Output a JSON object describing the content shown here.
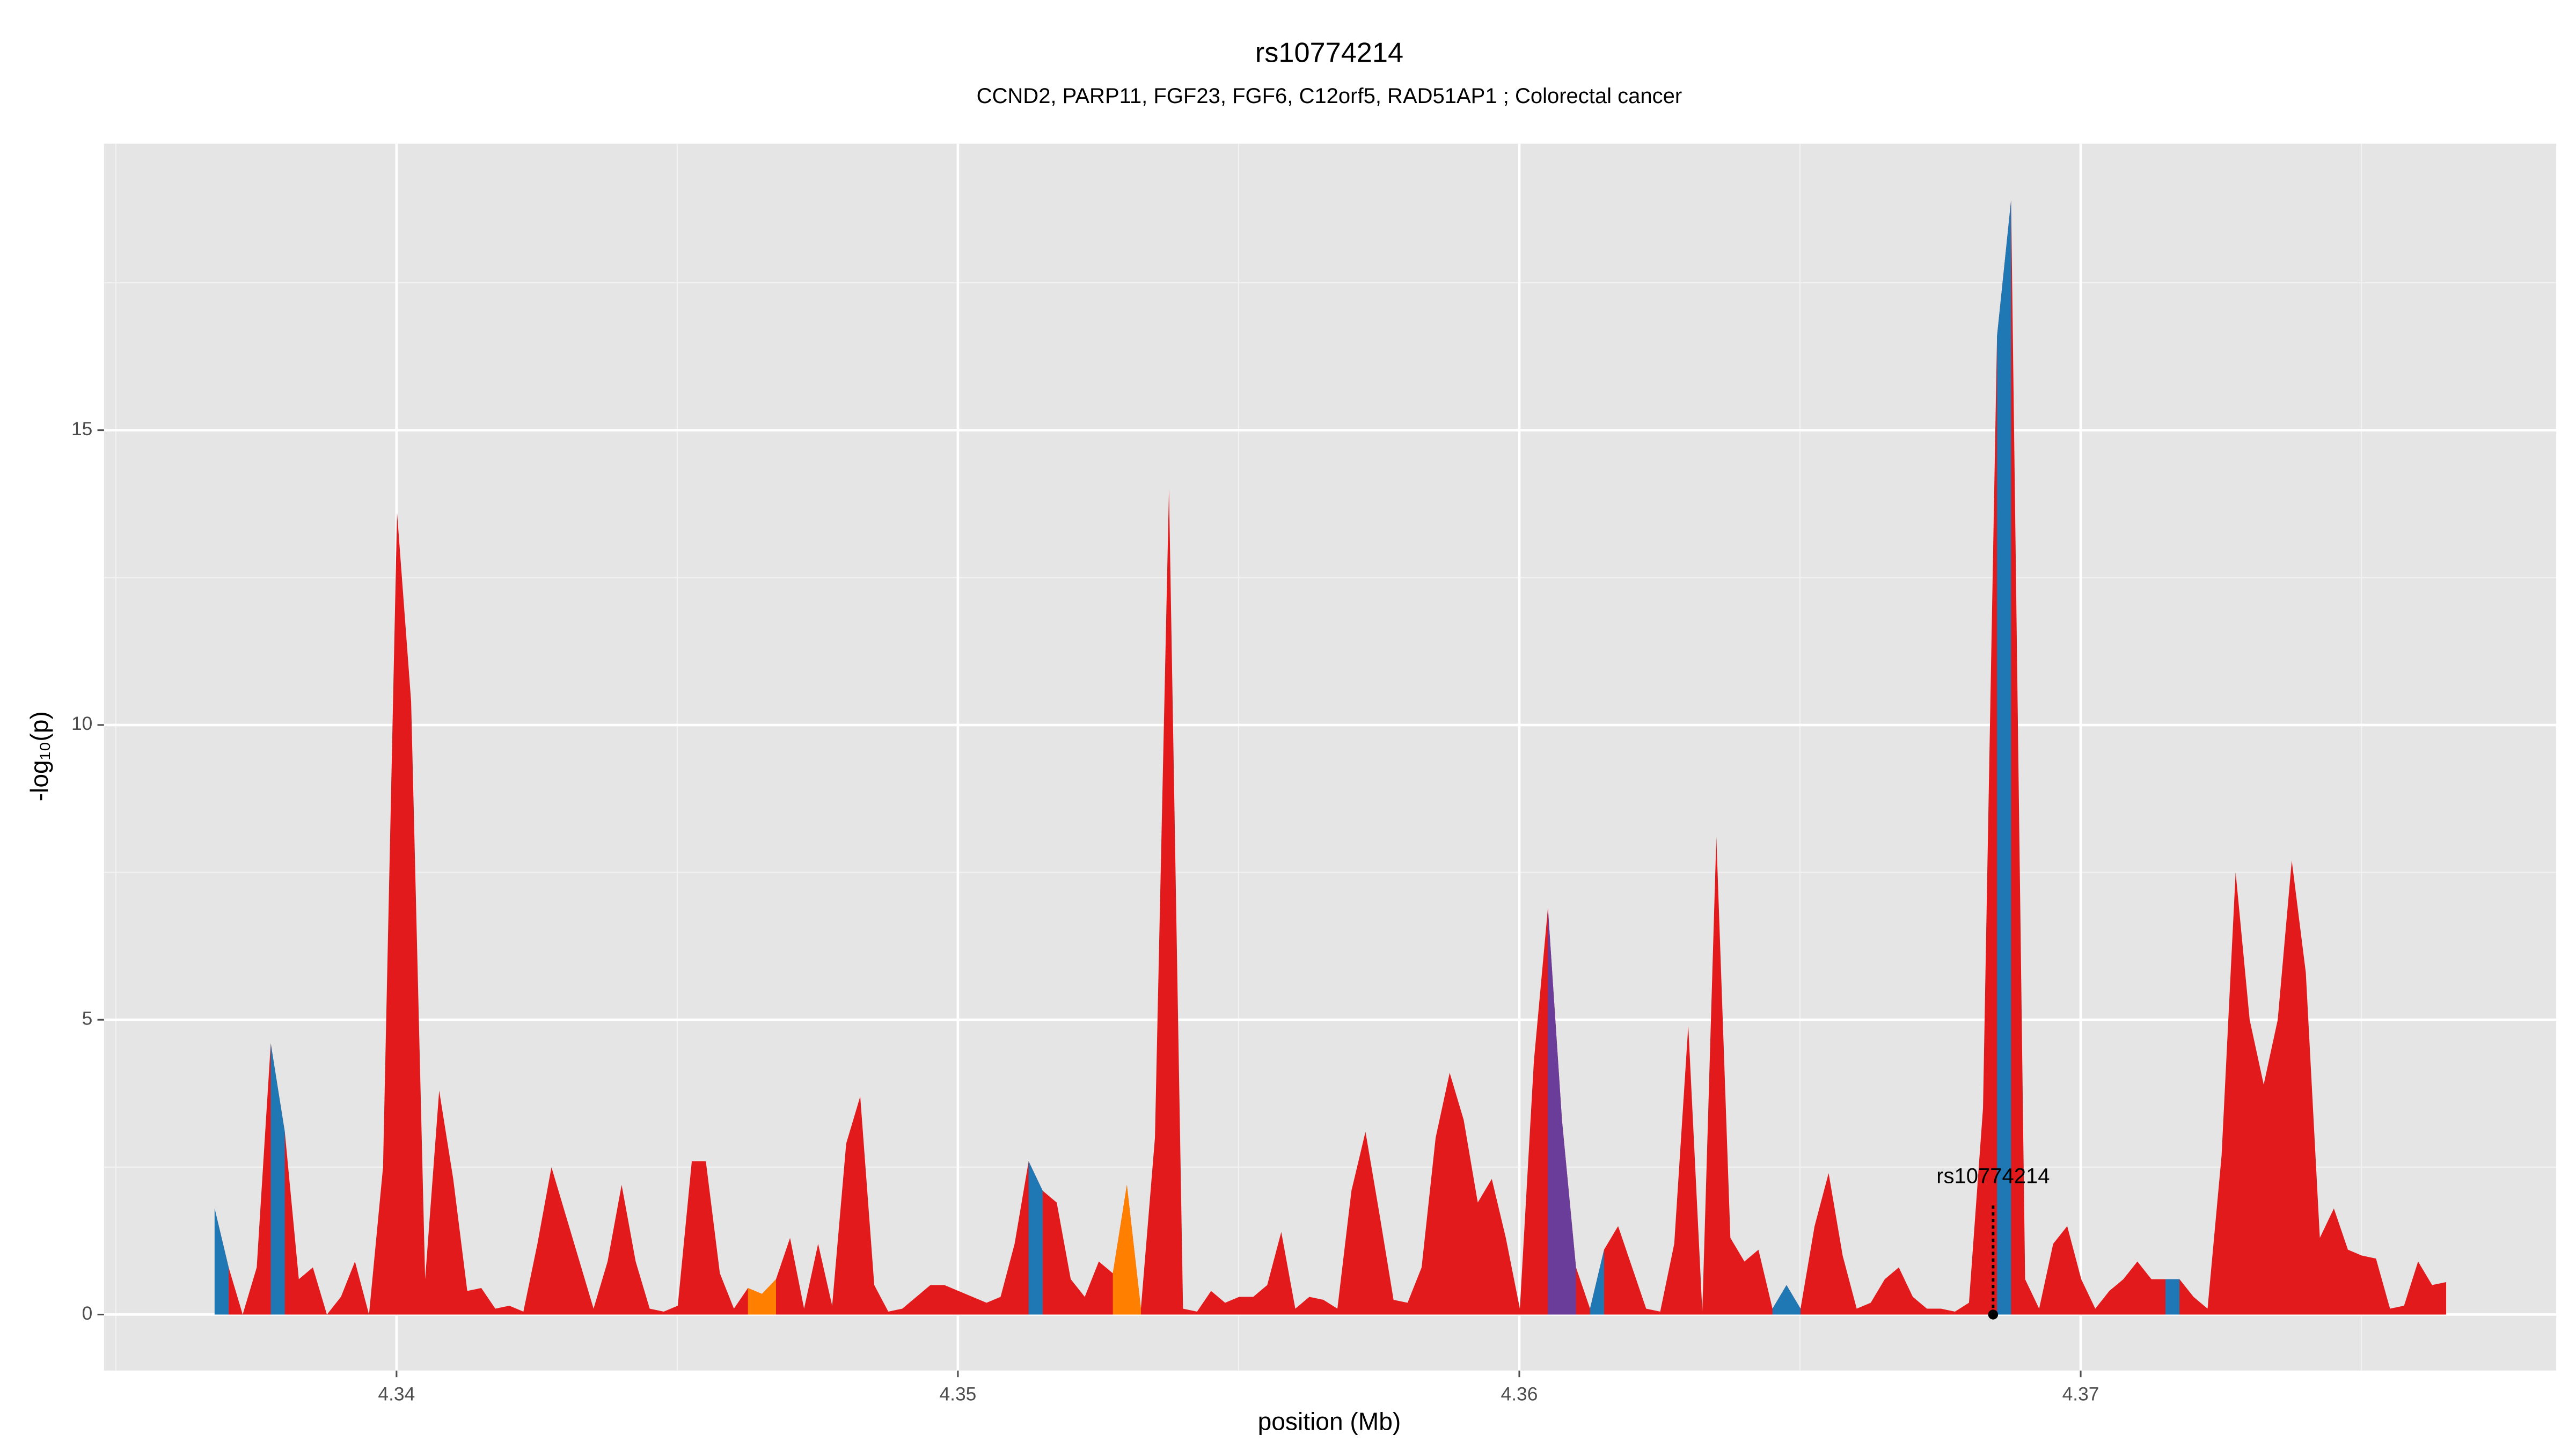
{
  "chart_data": {
    "type": "area",
    "title": "rs10774214",
    "subtitle": "CCND2, PARP11, FGF23, FGF6, C12orf5, RAD51AP1 ; Colorectal cancer",
    "x_label": "position (Mb)",
    "y_label": "-log₁₀(p)",
    "xlim": [
      4.33479,
      4.37847
    ],
    "ylim": [
      -0.95,
      19.86
    ],
    "xticks": [
      4.34,
      4.35,
      4.36,
      4.37
    ],
    "yticks": [
      0,
      5,
      10,
      15
    ],
    "x_minor_ticks": [
      4.335,
      4.345,
      4.355,
      4.365,
      4.375
    ],
    "y_minor_ticks": [
      2.5,
      7.5,
      12.5,
      17.5
    ],
    "grid": true,
    "series": [
      {
        "color": "#e31a1c",
        "x": [
          4.33676,
          4.33701,
          4.33726,
          4.33751,
          4.33776,
          4.33801,
          4.33826,
          4.33851,
          4.33876,
          4.33901,
          4.33926,
          4.33951,
          4.33976,
          4.34001,
          4.34026,
          4.34051,
          4.34076,
          4.34101,
          4.34126,
          4.34151,
          4.34176,
          4.34201,
          4.34226,
          4.34251,
          4.34276,
          4.34301,
          4.34326,
          4.34351,
          4.34376,
          4.34401,
          4.34426,
          4.34451,
          4.34476,
          4.34501,
          4.34526,
          4.34551,
          4.34576,
          4.34601,
          4.34626,
          4.34651,
          4.34676,
          4.34701,
          4.34726,
          4.34751,
          4.34776,
          4.34801,
          4.34826,
          4.34851,
          4.34876,
          4.34901,
          4.34926,
          4.34951,
          4.34976,
          4.35001,
          4.35026,
          4.35051,
          4.35076,
          4.35101,
          4.35126,
          4.35151,
          4.35176,
          4.35201,
          4.35226,
          4.35251,
          4.35276,
          4.35301,
          4.35326,
          4.35351,
          4.35376,
          4.35401,
          4.35426,
          4.35451,
          4.35476,
          4.35501,
          4.35526,
          4.35551,
          4.35576,
          4.35601,
          4.35626,
          4.35651,
          4.35676,
          4.35701,
          4.35726,
          4.35751,
          4.35776,
          4.35801,
          4.35826,
          4.35851,
          4.35876,
          4.35901,
          4.35926,
          4.35951,
          4.35976,
          4.36001,
          4.36026,
          4.36051,
          4.36076,
          4.36101,
          4.36126,
          4.36151,
          4.36176,
          4.36201,
          4.36226,
          4.36251,
          4.36276,
          4.36301,
          4.36326,
          4.36351,
          4.36376,
          4.36401,
          4.36426,
          4.36451,
          4.36476,
          4.36501,
          4.36526,
          4.36551,
          4.36576,
          4.36601,
          4.36626,
          4.36651,
          4.36676,
          4.36701,
          4.36726,
          4.36751,
          4.36776,
          4.36801,
          4.36826,
          4.36851,
          4.36876,
          4.36901,
          4.36926,
          4.36951,
          4.36976,
          4.37001,
          4.37026,
          4.37051,
          4.37076,
          4.37101,
          4.37126,
          4.37151,
          4.37176,
          4.37201,
          4.37226,
          4.37251,
          4.37276,
          4.37301,
          4.37326,
          4.37351,
          4.37376,
          4.37401,
          4.37426,
          4.37451,
          4.37476,
          4.37501,
          4.37526,
          4.37551,
          4.37576,
          4.37601,
          4.37626,
          4.37651
        ],
        "values": [
          1.8,
          0.8,
          0,
          0.8,
          4.6,
          3.1,
          0.6,
          0.8,
          0,
          0.3,
          0.9,
          0,
          2.5,
          13.6,
          10.4,
          0.6,
          3.8,
          2.3,
          0.4,
          0.45,
          0.1,
          0.15,
          0.05,
          1.2,
          2.5,
          1.7,
          0.9,
          0.1,
          0.9,
          2.2,
          0.9,
          0.1,
          0.05,
          0.15,
          2.6,
          2.6,
          0.7,
          0.1,
          0.45,
          0.35,
          0.6,
          1.3,
          0.1,
          1.2,
          0.15,
          2.9,
          3.7,
          0.5,
          0.05,
          0.1,
          0.3,
          0.5,
          0.5,
          0.4,
          0.3,
          0.2,
          0.3,
          1.2,
          2.6,
          2.1,
          1.9,
          0.6,
          0.3,
          0.9,
          0.7,
          2.2,
          0.1,
          3.0,
          14.0,
          0.1,
          0.05,
          0.4,
          0.2,
          0.3,
          0.3,
          0.5,
          1.4,
          0.1,
          0.3,
          0.25,
          0.1,
          2.1,
          3.1,
          1.7,
          0.25,
          0.2,
          0.8,
          3.0,
          4.1,
          3.3,
          1.9,
          2.3,
          1.3,
          0.1,
          4.3,
          6.9,
          3.3,
          0.8,
          0.1,
          1.1,
          1.5,
          0.8,
          0.1,
          0.05,
          1.2,
          4.9,
          0.05,
          8.1,
          1.3,
          0.9,
          1.1,
          0.1,
          0.5,
          0.1,
          1.5,
          2.4,
          1.0,
          0.1,
          0.2,
          0.6,
          0.8,
          0.3,
          0.1,
          0.1,
          0.05,
          0.2,
          3.5,
          16.6,
          18.9,
          0.6,
          0.1,
          1.2,
          1.5,
          0.6,
          0.1,
          0.4,
          0.6,
          0.9,
          0.6,
          0.6,
          0.6,
          0.3,
          0.1,
          2.7,
          7.5,
          5.0,
          3.9,
          5.0,
          7.7,
          5.8,
          1.3,
          1.8,
          1.1,
          1.0,
          0.95,
          0.1,
          0.15,
          0.9,
          0.5,
          0.55
        ]
      },
      {
        "color": "#1f78b4",
        "x": [
          4.33676,
          4.33701,
          null,
          4.33776,
          4.33801,
          null,
          4.35126,
          4.35151,
          null,
          4.36126,
          4.36151,
          null,
          4.36451,
          4.36476,
          4.36501,
          null,
          4.36851,
          4.36876,
          null,
          4.37151,
          4.37176
        ],
        "values": [
          1.8,
          0.8,
          null,
          4.6,
          3.1,
          null,
          2.6,
          2.1,
          null,
          0.1,
          1.1,
          null,
          0.1,
          0.5,
          0.1,
          null,
          16.6,
          18.9,
          null,
          0.6,
          0.6
        ]
      },
      {
        "color": "#ff7f00",
        "x": [
          4.34626,
          4.34651,
          4.34676,
          null,
          4.35276,
          4.35301,
          4.35326
        ],
        "values": [
          0.45,
          0.35,
          0.6,
          null,
          0.7,
          2.2,
          0.1
        ]
      },
      {
        "color": "#6a3d9a",
        "x": [
          4.36051,
          4.36076,
          4.36101
        ],
        "values": [
          6.9,
          3.3,
          0.8
        ]
      }
    ],
    "annotations": [
      {
        "text": "rs10774214",
        "x": 4.36844,
        "y": 0
      }
    ]
  }
}
